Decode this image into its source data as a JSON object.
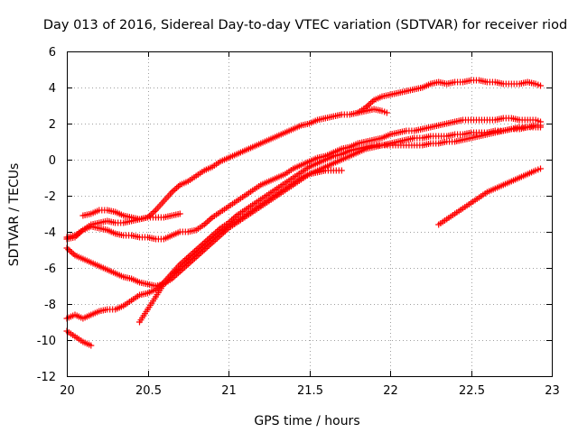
{
  "chart_data": {
    "type": "scatter",
    "title": "Day 013 of 2016, Sidereal Day-to-day VTEC variation (SDTVAR) for receiver riod",
    "xlabel": "GPS time / hours",
    "ylabel": "SDTVAR / TECUs",
    "xlim": [
      20,
      23
    ],
    "ylim": [
      -12,
      6
    ],
    "xticks": [
      20,
      20.5,
      21,
      21.5,
      22,
      22.5,
      23
    ],
    "xtick_labels": [
      "20",
      "20.5",
      "21",
      "21.5",
      "22",
      "22.5",
      "23"
    ],
    "yticks": [
      -12,
      -10,
      -8,
      -6,
      -4,
      -2,
      0,
      2,
      4,
      6
    ],
    "ytick_labels": [
      "-12",
      "-10",
      "-8",
      "-6",
      "-4",
      "-2",
      "0",
      "2",
      "4",
      "6"
    ],
    "grid": true,
    "marker": "+",
    "color": "#ff0000",
    "series": [
      {
        "name": "s1",
        "x": [
          20.1,
          20.15,
          20.2,
          20.25,
          20.3,
          20.35,
          20.4,
          20.45,
          20.5,
          20.55,
          20.6,
          20.65,
          20.7,
          20.75,
          20.8,
          20.85,
          20.9,
          20.95,
          21.0,
          21.05,
          21.1,
          21.15,
          21.2,
          21.25,
          21.3,
          21.35,
          21.4,
          21.45,
          21.5,
          21.55,
          21.6,
          21.65,
          21.7,
          21.75,
          21.8,
          21.85,
          21.9,
          21.95,
          22.0,
          22.05,
          22.1,
          22.15,
          22.2,
          22.25,
          22.3,
          22.35,
          22.4,
          22.45,
          22.5,
          22.55,
          22.6,
          22.65,
          22.7,
          22.75,
          22.8,
          22.85,
          22.9,
          22.93
        ],
        "y": [
          -3.1,
          -3.0,
          -2.8,
          -2.8,
          -2.9,
          -3.1,
          -3.2,
          -3.3,
          -3.2,
          -2.8,
          -2.3,
          -1.8,
          -1.4,
          -1.2,
          -0.9,
          -0.6,
          -0.4,
          -0.1,
          0.1,
          0.3,
          0.5,
          0.7,
          0.9,
          1.1,
          1.3,
          1.5,
          1.7,
          1.9,
          2.0,
          2.2,
          2.3,
          2.4,
          2.5,
          2.5,
          2.6,
          2.9,
          3.3,
          3.5,
          3.6,
          3.7,
          3.8,
          3.9,
          4.0,
          4.2,
          4.3,
          4.2,
          4.3,
          4.3,
          4.4,
          4.4,
          4.3,
          4.3,
          4.2,
          4.2,
          4.2,
          4.3,
          4.2,
          4.1
        ]
      },
      {
        "name": "s2",
        "x": [
          20.0,
          20.05,
          20.1,
          20.15,
          20.2,
          20.25,
          20.3,
          20.35,
          20.4,
          20.45,
          20.5,
          20.55,
          20.6,
          20.65,
          20.7
        ],
        "y": [
          -4.4,
          -4.3,
          -3.9,
          -3.6,
          -3.5,
          -3.4,
          -3.5,
          -3.5,
          -3.4,
          -3.3,
          -3.2,
          -3.2,
          -3.2,
          -3.1,
          -3.0
        ]
      },
      {
        "name": "s3",
        "x": [
          20.0,
          20.05,
          20.1,
          20.15,
          20.2,
          20.25,
          20.3,
          20.35,
          20.4,
          20.45,
          20.5,
          20.55,
          20.6,
          20.65,
          20.7,
          20.75,
          20.8,
          20.85,
          20.9,
          20.95,
          21.0,
          21.05,
          21.1,
          21.15,
          21.2,
          21.25,
          21.3,
          21.35,
          21.4,
          21.45,
          21.5,
          21.55,
          21.6,
          21.65,
          21.7,
          21.75,
          21.8,
          21.85,
          21.9,
          21.95,
          22.0,
          22.05,
          22.1,
          22.15,
          22.2,
          22.25,
          22.3,
          22.35,
          22.4,
          22.45,
          22.5,
          22.55,
          22.6,
          22.65,
          22.7,
          22.75,
          22.8,
          22.85,
          22.9,
          22.93
        ],
        "y": [
          -4.3,
          -4.2,
          -3.9,
          -3.7,
          -3.8,
          -3.9,
          -4.1,
          -4.2,
          -4.2,
          -4.3,
          -4.3,
          -4.4,
          -4.4,
          -4.2,
          -4.0,
          -4.0,
          -3.9,
          -3.6,
          -3.2,
          -2.9,
          -2.6,
          -2.3,
          -2.0,
          -1.7,
          -1.4,
          -1.2,
          -1.0,
          -0.8,
          -0.5,
          -0.3,
          -0.1,
          0.1,
          0.2,
          0.4,
          0.6,
          0.7,
          0.9,
          1.0,
          1.1,
          1.2,
          1.4,
          1.5,
          1.6,
          1.6,
          1.7,
          1.8,
          1.9,
          2.0,
          2.1,
          2.2,
          2.2,
          2.2,
          2.2,
          2.2,
          2.3,
          2.3,
          2.2,
          2.2,
          2.2,
          2.1
        ]
      },
      {
        "name": "s4",
        "x": [
          20.0,
          20.05,
          20.1,
          20.15,
          20.2,
          20.25,
          20.3,
          20.35,
          20.4,
          20.45,
          20.5,
          20.55,
          20.6,
          20.65,
          20.7,
          20.75,
          20.8,
          20.85,
          20.9,
          20.95,
          21.0,
          21.05,
          21.1,
          21.15,
          21.2,
          21.25,
          21.3,
          21.35,
          21.4,
          21.45,
          21.5,
          21.55,
          21.6,
          21.65,
          21.7,
          21.75,
          21.8,
          21.85,
          21.9,
          21.95,
          22.0,
          22.05,
          22.1,
          22.15,
          22.2,
          22.25,
          22.3,
          22.35,
          22.4,
          22.45,
          22.5,
          22.55,
          22.6,
          22.65,
          22.7,
          22.75,
          22.8,
          22.85,
          22.9,
          22.93
        ],
        "y": [
          -4.9,
          -5.3,
          -5.5,
          -5.7,
          -5.9,
          -6.1,
          -6.3,
          -6.5,
          -6.6,
          -6.8,
          -6.9,
          -7.0,
          -6.9,
          -6.6,
          -6.2,
          -5.8,
          -5.4,
          -5.0,
          -4.6,
          -4.2,
          -3.8,
          -3.5,
          -3.2,
          -2.9,
          -2.6,
          -2.3,
          -2.0,
          -1.7,
          -1.4,
          -1.1,
          -0.8,
          -0.6,
          -0.4,
          -0.2,
          0.0,
          0.2,
          0.4,
          0.6,
          0.7,
          0.8,
          0.9,
          1.0,
          1.1,
          1.2,
          1.2,
          1.3,
          1.3,
          1.3,
          1.4,
          1.4,
          1.5,
          1.5,
          1.5,
          1.6,
          1.6,
          1.7,
          1.7,
          1.8,
          1.8,
          1.8
        ]
      },
      {
        "name": "s5",
        "x": [
          20.0,
          20.05,
          20.1,
          20.15,
          20.2,
          20.25,
          20.3,
          20.35,
          20.4,
          20.45,
          20.5,
          20.55,
          20.6,
          20.65,
          20.7,
          20.75,
          20.8,
          20.85,
          20.9,
          20.95,
          21.0,
          21.05,
          21.1,
          21.15,
          21.2,
          21.25,
          21.3,
          21.35,
          21.4,
          21.45,
          21.5,
          21.55,
          21.6,
          21.65,
          21.7,
          21.75,
          21.8,
          21.85,
          21.9,
          21.95,
          22.0,
          22.05,
          22.1,
          22.15,
          22.2,
          22.25,
          22.3,
          22.35,
          22.4,
          22.45,
          22.5,
          22.55,
          22.6,
          22.65,
          22.7,
          22.75,
          22.8,
          22.85,
          22.9,
          22.93
        ],
        "y": [
          -8.8,
          -8.6,
          -8.8,
          -8.6,
          -8.4,
          -8.3,
          -8.3,
          -8.1,
          -7.8,
          -7.5,
          -7.4,
          -7.2,
          -6.8,
          -6.3,
          -5.8,
          -5.4,
          -5.0,
          -4.6,
          -4.2,
          -3.8,
          -3.5,
          -3.1,
          -2.8,
          -2.5,
          -2.2,
          -1.9,
          -1.6,
          -1.3,
          -1.0,
          -0.7,
          -0.4,
          -0.2,
          0.0,
          0.2,
          0.3,
          0.5,
          0.6,
          0.7,
          0.8,
          0.8,
          0.8,
          0.8,
          0.8,
          0.8,
          0.8,
          0.9,
          0.9,
          1.0,
          1.0,
          1.1,
          1.2,
          1.3,
          1.4,
          1.5,
          1.6,
          1.7,
          1.8,
          1.8,
          1.9,
          1.9
        ]
      },
      {
        "name": "s6",
        "x": [
          20.45,
          20.5,
          20.55,
          20.6,
          20.65,
          20.7,
          20.75,
          20.8,
          20.85,
          20.9,
          20.95,
          21.0,
          21.05,
          21.1,
          21.15,
          21.2,
          21.25,
          21.3,
          21.35,
          21.4,
          21.45,
          21.5,
          21.55,
          21.6,
          21.65,
          21.7
        ],
        "y": [
          -9.0,
          -8.3,
          -7.6,
          -6.9,
          -6.4,
          -6.0,
          -5.6,
          -5.2,
          -4.8,
          -4.4,
          -4.0,
          -3.7,
          -3.4,
          -3.1,
          -2.8,
          -2.5,
          -2.2,
          -1.9,
          -1.6,
          -1.3,
          -1.0,
          -0.8,
          -0.7,
          -0.6,
          -0.6,
          -0.6
        ]
      },
      {
        "name": "s7",
        "x": [
          20.0,
          20.05,
          20.1,
          20.15
        ],
        "y": [
          -9.5,
          -9.8,
          -10.1,
          -10.3
        ]
      },
      {
        "name": "s8",
        "x": [
          21.8,
          21.85,
          21.9,
          21.95,
          21.98
        ],
        "y": [
          2.6,
          2.7,
          2.8,
          2.7,
          2.6
        ]
      },
      {
        "name": "s9",
        "x": [
          22.3,
          22.35,
          22.4,
          22.45,
          22.5,
          22.55,
          22.6,
          22.65,
          22.7,
          22.75,
          22.8,
          22.85,
          22.9,
          22.93
        ],
        "y": [
          -3.6,
          -3.3,
          -3.0,
          -2.7,
          -2.4,
          -2.1,
          -1.8,
          -1.6,
          -1.4,
          -1.2,
          -1.0,
          -0.8,
          -0.6,
          -0.5
        ]
      }
    ]
  }
}
